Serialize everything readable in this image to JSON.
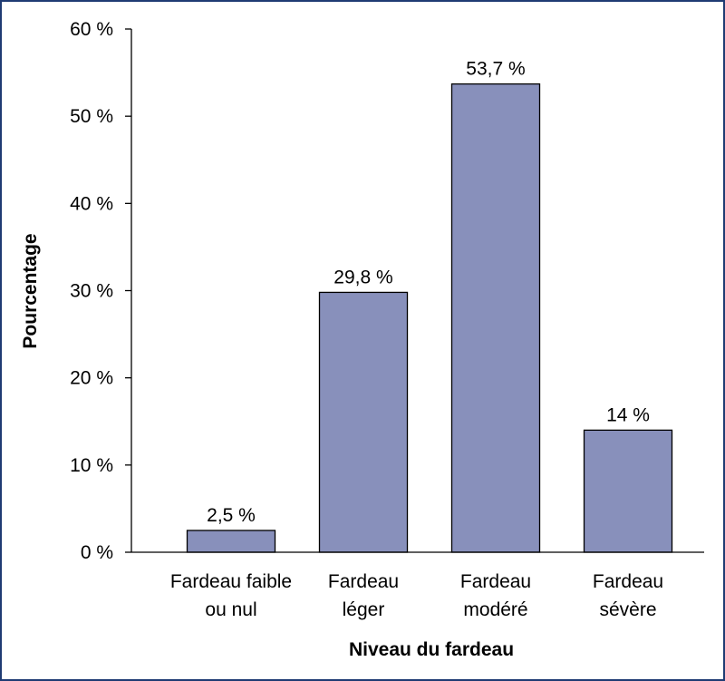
{
  "chart_data": {
    "type": "bar",
    "categories": [
      [
        "Fardeau faible",
        "ou nul"
      ],
      [
        "Fardeau",
        "léger"
      ],
      [
        "Fardeau",
        "modéré"
      ],
      [
        "Fardeau",
        "sévère"
      ]
    ],
    "values": [
      2.5,
      29.8,
      53.7,
      14
    ],
    "data_labels": [
      "2,5 %",
      "29,8 %",
      "53,7 %",
      "14 %"
    ],
    "xlabel": "Niveau du fardeau",
    "ylabel": "Pourcentage",
    "ylim": [
      0,
      60
    ],
    "yticks": [
      0,
      10,
      20,
      30,
      40,
      50,
      60
    ],
    "ytick_labels": [
      "0 %",
      "10 %",
      "20 %",
      "30 %",
      "40 %",
      "50 %",
      "60 %"
    ],
    "grid": false,
    "legend": "none",
    "colors": {
      "bar": "#8890bb",
      "bar_stroke": "#000000",
      "frame": "#1f3b73"
    }
  }
}
